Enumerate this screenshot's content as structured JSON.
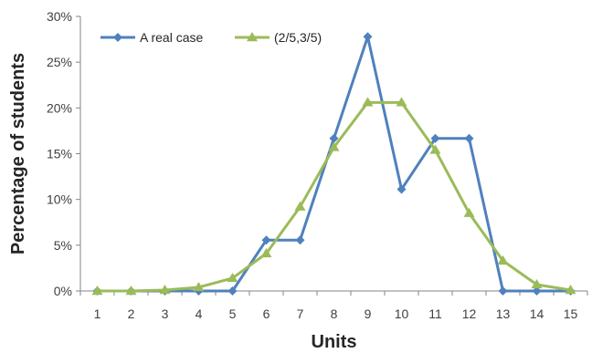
{
  "chart_data": {
    "type": "line",
    "xlabel": "Units",
    "ylabel": "Percentage of students",
    "x": [
      1,
      2,
      3,
      4,
      5,
      6,
      7,
      8,
      9,
      10,
      11,
      12,
      13,
      14,
      15
    ],
    "ylim": [
      0,
      0.3
    ],
    "yticks": [
      "0%",
      "5%",
      "10%",
      "15%",
      "20%",
      "25%",
      "30%"
    ],
    "grid": false,
    "legend": "top-left",
    "series": [
      {
        "name": "A real case",
        "color": "#4F81BD",
        "marker": "diamond",
        "values": [
          0,
          0,
          0,
          0,
          0,
          0.0556,
          0.0556,
          0.1667,
          0.2778,
          0.1111,
          0.1667,
          0.1667,
          0,
          0,
          0
        ]
      },
      {
        "name": "(2/5,3/5)",
        "color": "#9BBB59",
        "marker": "triangle",
        "values": [
          0,
          0,
          0.001,
          0.004,
          0.014,
          0.041,
          0.092,
          0.157,
          0.206,
          0.206,
          0.154,
          0.085,
          0.033,
          0.007,
          0.001
        ]
      }
    ]
  }
}
